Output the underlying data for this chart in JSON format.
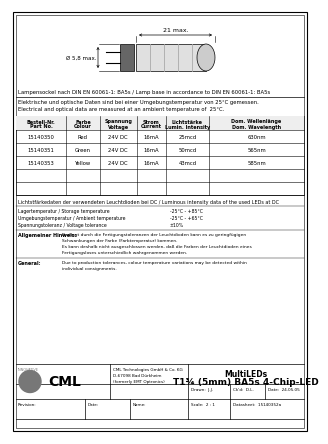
{
  "title_line1": "MultiLEDs",
  "title_line2": "T1¾ (5mm) BA5s 4-Chip-LED",
  "drawn_by": "J.J.",
  "checked_by": "D.L.",
  "date": "24.05.05",
  "scale": "2 : 1",
  "datasheet": "15140352a",
  "company_line1": "CML Technologies GmbH & Co. KG",
  "company_line2": "D-67098 Bad Dürkheim",
  "company_line3": "(formerly EMT Optronics)",
  "lamp_base_text": "Lampensockel nach DIN EN 60061-1: BA5s / Lamp base in accordance to DIN EN 60061-1: BA5s",
  "electrical_text1": "Elektrische und optische Daten sind bei einer Umgebungstemperatur von 25°C gemessen.",
  "electrical_text2": "Electrical and optical data are measured at an ambient temperature of  25°C.",
  "luminous_text": "Lichtstfärkedaten der verwendeten Leuchtdioden bei DC / Luminous intensity data of the used LEDs at DC",
  "storage_temp_de": "Lagertemperatur / Storage temperature",
  "storage_temp_val": "-25°C - +85°C",
  "ambient_temp_de": "Umgebungstemperatur / Ambient temperature",
  "ambient_temp_val": "-25°C - +65°C",
  "voltage_tol_de": "Spannungstoleranz / Voltage tolerance",
  "voltage_tol_val": "±10%",
  "general_hint_label": "Allgemeiner Hinweis:",
  "general_hint_de_lines": [
    "Bedingt durch die Fertigungstoleranzen der Leuchtdioden kann es zu geringfügigen",
    "Schwankungen der Farbe (Farbtemperatur) kommen.",
    "Es kann deshalb nicht ausgeschlossen werden, daß die Farben der Leuchtdioden eines",
    "Fertigungsloses unterschiedlich wahrgenommen werden."
  ],
  "general_label": "General:",
  "general_en_lines": [
    "Due to production tolerances, colour temperature variations may be detected within",
    "individual consignments."
  ],
  "table_headers": [
    "Bestell-Nr.\nPart No.",
    "Farbe\nColour",
    "Spannung\nVoltage",
    "Strom\nCurrent",
    "Lichtstärke\nLumin. Intensity",
    "Dom. Wellenlänge\nDom. Wavelength"
  ],
  "table_rows": [
    [
      "15140350",
      "Red",
      "24V DC",
      "16mA",
      "25mcd",
      "630nm"
    ],
    [
      "15140351",
      "Green",
      "24V DC",
      "16mA",
      "50mcd",
      "565nm"
    ],
    [
      "15140353",
      "Yellow",
      "24V DC",
      "16mA",
      "43mcd",
      "585nm"
    ]
  ],
  "dim_length": "21 max.",
  "dim_diameter": "Ø 5,8 max.",
  "bg_color": "#ffffff"
}
